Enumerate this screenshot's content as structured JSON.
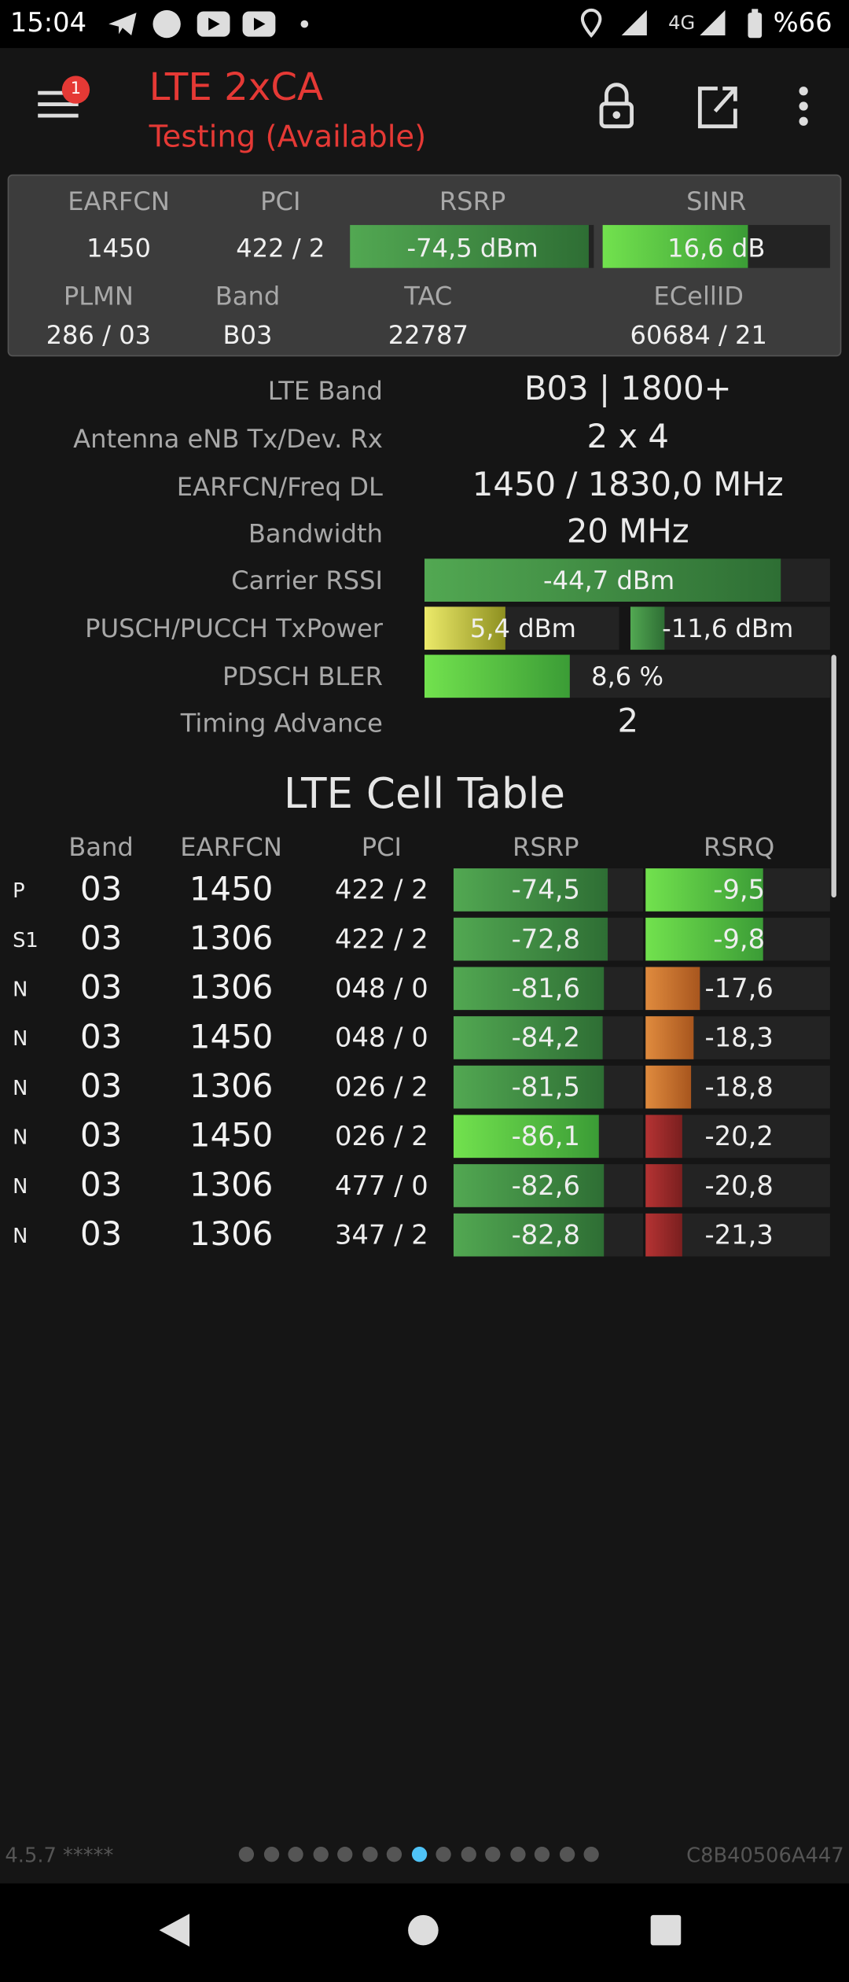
{
  "status_bar": {
    "time": "15:04",
    "network": "4G",
    "battery": "%66"
  },
  "header": {
    "badge": "1",
    "title": "LTE 2xCA",
    "subtitle": "Testing (Available)"
  },
  "summary": {
    "headers_1": [
      "EARFCN",
      "PCI",
      "RSRP",
      "SINR"
    ],
    "values_1": [
      "1450",
      "422 / 2",
      "-74,5 dBm",
      "16,6 dB"
    ],
    "headers_2": [
      "PLMN",
      "Band",
      "TAC",
      "ECellID"
    ],
    "values_2": [
      "286 / 03",
      "B03",
      "22787",
      "60684 / 21"
    ]
  },
  "details": [
    {
      "label": "LTE Band",
      "value": "B03 | 1800+"
    },
    {
      "label": "Antenna eNB Tx/Dev. Rx",
      "value": "2 x 4"
    },
    {
      "label": "EARFCN/Freq DL",
      "value": "1450 / 1830,0 MHz"
    },
    {
      "label": "Bandwidth",
      "value": "20 MHz"
    },
    {
      "label": "Carrier RSSI",
      "value": "-44,7 dBm"
    },
    {
      "label": "PUSCH/PUCCH TxPower",
      "values": [
        "5,4 dBm",
        "-11,6 dBm"
      ]
    },
    {
      "label": "PDSCH BLER",
      "value": "8,6 %"
    },
    {
      "label": "Timing Advance",
      "value": "2"
    }
  ],
  "cell_table": {
    "title": "LTE Cell Table",
    "columns": [
      "Band",
      "EARFCN",
      "PCI",
      "RSRP",
      "RSRQ"
    ],
    "rows": [
      [
        "P",
        "03",
        "1450",
        "422 / 2",
        "-74,5",
        "-9,5"
      ],
      [
        "S1",
        "03",
        "1306",
        "422 / 2",
        "-72,8",
        "-9,8"
      ],
      [
        "N",
        "03",
        "1306",
        "048 / 0",
        "-81,6",
        "-17,6"
      ],
      [
        "N",
        "03",
        "1450",
        "048 / 0",
        "-84,2",
        "-18,3"
      ],
      [
        "N",
        "03",
        "1306",
        "026 / 2",
        "-81,5",
        "-18,8"
      ],
      [
        "N",
        "03",
        "1450",
        "026 / 2",
        "-86,1",
        "-20,2"
      ],
      [
        "N",
        "03",
        "1306",
        "477 / 0",
        "-82,6",
        "-20,8"
      ],
      [
        "N",
        "03",
        "1306",
        "347 / 2",
        "-82,8",
        "-21,3"
      ]
    ]
  },
  "footer": {
    "version": "4.5.7 *****",
    "device_id": "C8B40506A447"
  }
}
